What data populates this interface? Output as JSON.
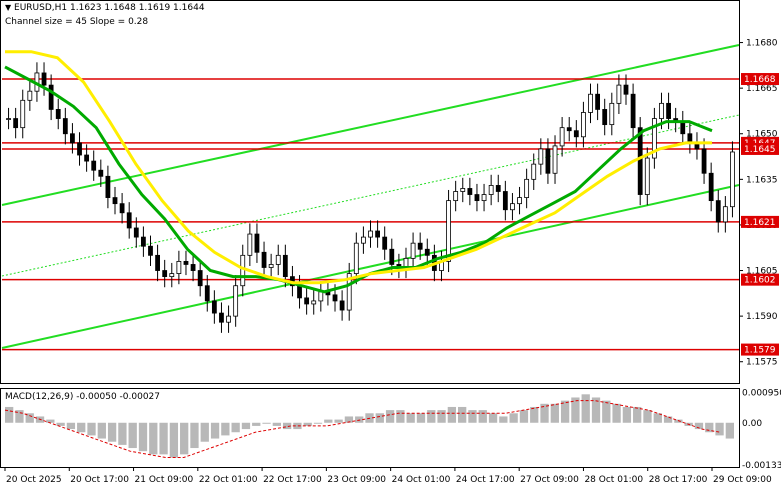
{
  "header": {
    "symbol_line": "EURUSD,H1  1.1623 1.1648 1.1619 1.1644",
    "channel_line": "Channel size = 45 Slope = 0.28",
    "macd_label": "MACD(12,26,9) -0.00050 -0.00027"
  },
  "chart_data": [
    {
      "type": "line",
      "title": "EURUSD,H1",
      "ohlc_last": {
        "open": 1.1623,
        "high": 1.1648,
        "low": 1.1619,
        "close": 1.1644
      },
      "ylim": [
        1.1568,
        1.1694
      ],
      "y_ticks": [
        "1.1680",
        "1.1665",
        "1.1650",
        "1.1635",
        "1.1620",
        "1.1605",
        "1.1590",
        "1.1575"
      ],
      "x_ticks": [
        "20 Oct 2025",
        "20 Oct 17:00",
        "21 Oct 09:00",
        "22 Oct 01:00",
        "22 Oct 17:00",
        "23 Oct 09:00",
        "24 Oct 01:00",
        "24 Oct 17:00",
        "27 Oct 09:00",
        "28 Oct 01:00",
        "28 Oct 17:00",
        "29 Oct 09:00"
      ],
      "grid": false,
      "horizontal_levels": [
        {
          "value": 1.1668,
          "label": "1.1668"
        },
        {
          "value": 1.1647,
          "label": "1.1647"
        },
        {
          "value": 1.1645,
          "label": "1.1645"
        },
        {
          "value": 1.1621,
          "label": "1.1621"
        },
        {
          "value": 1.1602,
          "label": "1.1602"
        },
        {
          "value": 1.1579,
          "label": "1.1579"
        }
      ],
      "close_series": [
        1.1655,
        1.1652,
        1.1661,
        1.1664,
        1.167,
        1.1666,
        1.1658,
        1.1655,
        1.165,
        1.1647,
        1.1643,
        1.1641,
        1.1638,
        1.1636,
        1.1629,
        1.1627,
        1.1624,
        1.1619,
        1.1616,
        1.1613,
        1.161,
        1.1605,
        1.1603,
        1.1604,
        1.1608,
        1.1607,
        1.1605,
        1.16,
        1.1595,
        1.1591,
        1.1588,
        1.159,
        1.16,
        1.161,
        1.1617,
        1.1611,
        1.1606,
        1.1607,
        1.161,
        1.1603,
        1.16,
        1.1596,
        1.1594,
        1.1595,
        1.1598,
        1.1597,
        1.1595,
        1.1592,
        1.1604,
        1.1614,
        1.1616,
        1.1618,
        1.1616,
        1.1612,
        1.1607,
        1.1606,
        1.1609,
        1.1614,
        1.1612,
        1.161,
        1.1605,
        1.1608,
        1.1628,
        1.1631,
        1.1632,
        1.163,
        1.1628,
        1.163,
        1.1633,
        1.1631,
        1.1625,
        1.1627,
        1.1629,
        1.1635,
        1.164,
        1.1645,
        1.1637,
        1.1646,
        1.1652,
        1.1651,
        1.1649,
        1.1657,
        1.1663,
        1.1658,
        1.1653,
        1.166,
        1.1666,
        1.1663,
        1.1652,
        1.163,
        1.1642,
        1.1655,
        1.166,
        1.1655,
        1.1654,
        1.165,
        1.1647,
        1.1645,
        1.1637,
        1.1628,
        1.1621,
        1.1626,
        1.1644
      ],
      "series": [
        {
          "name": "",
          "color": "#00aa00",
          "values": [
            1.1672,
            1.1668,
            1.1664,
            1.1659,
            1.1652,
            1.164,
            1.163,
            1.1622,
            1.1612,
            1.1605,
            1.1603,
            1.1603,
            1.1602,
            1.16,
            1.1598,
            1.16,
            1.1604,
            1.1606,
            1.1606,
            1.1609,
            1.1611,
            1.1614,
            1.1619,
            1.1623,
            1.1627,
            1.1631,
            1.1638,
            1.1645,
            1.1651,
            1.1654,
            1.1654,
            1.1651
          ]
        },
        {
          "name": "",
          "color": "#ffee00",
          "values": [
            1.1677,
            1.1677,
            1.1675,
            1.1667,
            1.1654,
            1.164,
            1.1628,
            1.1618,
            1.1611,
            1.1606,
            1.1603,
            1.1601,
            1.1601,
            1.1602,
            1.1604,
            1.1605,
            1.1606,
            1.1609,
            1.1612,
            1.1616,
            1.162,
            1.1624,
            1.163,
            1.1636,
            1.1641,
            1.1645,
            1.1647,
            1.1647
          ]
        }
      ]
    },
    {
      "type": "bar",
      "title": "MACD(12,26,9)",
      "ylim": [
        -0.0014,
        0.0011
      ],
      "y_ticks": [
        "0.0009505",
        "0.00",
        "-0.00133"
      ],
      "histogram": [
        0.0005,
        0.0004,
        0.0003,
        0.0002,
        0.0001,
        -0.0001,
        -0.0002,
        -0.0003,
        -0.0004,
        -0.0005,
        -0.0006,
        -0.0007,
        -0.0008,
        -0.0009,
        -0.001,
        -0.001,
        -0.0011,
        -0.001,
        -0.0008,
        -0.0006,
        -0.0005,
        -0.0004,
        -0.0003,
        -0.0002,
        -0.0001,
        0.0,
        -0.0001,
        -0.0002,
        -0.0002,
        -0.0001,
        0.0,
        0.0001,
        0.0001,
        0.0002,
        0.0002,
        0.0003,
        0.0003,
        0.0004,
        0.0004,
        0.0003,
        0.0003,
        0.0004,
        0.0004,
        0.0005,
        0.0005,
        0.0004,
        0.0004,
        0.0003,
        0.0002,
        0.0003,
        0.0004,
        0.0005,
        0.0006,
        0.0006,
        0.0007,
        0.0008,
        0.0009,
        0.0008,
        0.0007,
        0.0006,
        0.0005,
        0.0005,
        0.0004,
        0.0003,
        0.0002,
        0.0001,
        -0.0001,
        -0.0002,
        -0.0003,
        -0.0004,
        -0.0005
      ],
      "signal": [
        0.0004,
        0.0003,
        0.0001,
        -0.0001,
        -0.0003,
        -0.0005,
        -0.0007,
        -0.0009,
        -0.001,
        -0.0011,
        -0.0011,
        -0.0009,
        -0.0007,
        -0.0005,
        -0.0003,
        -0.0002,
        -0.0001,
        -0.0001,
        -0.0001,
        0.0,
        0.0001,
        0.0002,
        0.0003,
        0.0003,
        0.0003,
        0.0003,
        0.0003,
        0.0003,
        0.0003,
        0.0004,
        0.0005,
        0.0006,
        0.0007,
        0.0007,
        0.0006,
        0.0005,
        0.0004,
        0.0002,
        0.0,
        -0.0002,
        -0.0003
      ]
    }
  ]
}
